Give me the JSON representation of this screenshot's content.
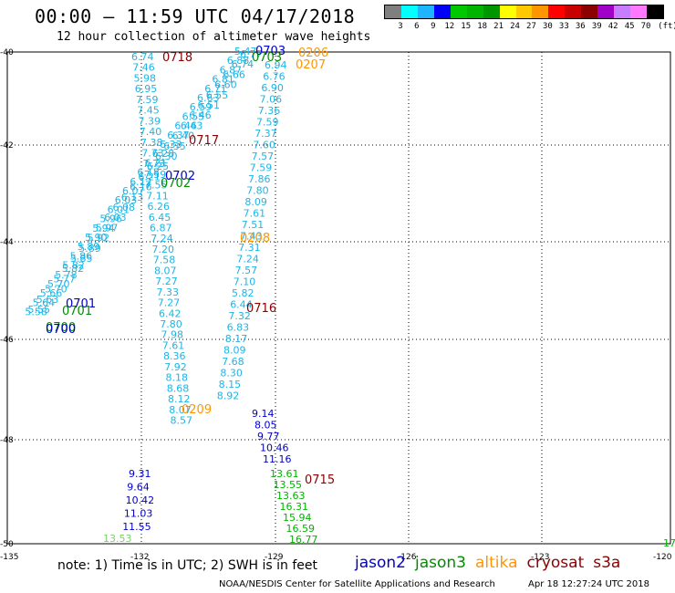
{
  "title": "00:00 – 11:59 UTC 04/17/2018",
  "subtitle": "12 hour collection of altimeter wave heights",
  "scale": {
    "colors": [
      "#7f7f7f",
      "#00ffff",
      "#1eb4ff",
      "#0000ff",
      "#00c800",
      "#00b400",
      "#009600",
      "#ffff00",
      "#ffc800",
      "#ff9600",
      "#ff0000",
      "#c80000",
      "#8c0000",
      "#a000c8",
      "#c87dff",
      "#ff78ff",
      "#000000"
    ],
    "labels": [
      "3",
      "6",
      "9",
      "12",
      "15",
      "18",
      "21",
      "24",
      "27",
      "30",
      "33",
      "36",
      "39",
      "42",
      "45",
      "70",
      "(ft)"
    ]
  },
  "axes": {
    "lat_labels": [
      "-40",
      "-42",
      "-44",
      "-46",
      "-48",
      "-50"
    ],
    "lon_labels": [
      "-135",
      "-132",
      "-129",
      "-126",
      "-123",
      "-120"
    ]
  },
  "tracks": {
    "col_a": [
      "6.74",
      "7.46",
      "5.98",
      "6.95",
      "7.59",
      "7.45",
      "7.39",
      "7.40",
      "7.38",
      "7.73",
      "7.73",
      "7.59",
      "7.55",
      "7.11",
      "6.26",
      "6.45",
      "6.87",
      "7.24",
      "7.20",
      "7.58",
      "8.07",
      "7.27",
      "7.33",
      "7.27",
      "6.42",
      "7.80",
      "7.98",
      "7.61",
      "8.36",
      "7.92",
      "8.18",
      "8.68",
      "8.12",
      "8.07",
      "8.57"
    ],
    "col_a_tail": [
      "9.31",
      "9.64",
      "10.42",
      "11.03",
      "11.55"
    ],
    "col_a_end": "13.53",
    "col_b": [
      "6.94",
      "6.76",
      "6.90",
      "7.06",
      "7.36",
      "7.59",
      "7.37",
      "7.60",
      "7.57",
      "7.59",
      "7.86",
      "7.80",
      "8.09",
      "7.61",
      "7.51",
      "7.43",
      "7.31",
      "7.24",
      "7.57",
      "7.10",
      "5.82",
      "6.44",
      "7.32",
      "6.83",
      "8.17",
      "8.09",
      "7.68",
      "8.30",
      "8.15",
      "8.92"
    ],
    "col_b_mid": [
      "9.14",
      "8.05",
      "9.77",
      "10.46",
      "11.16"
    ],
    "col_b_green": [
      "13.61",
      "13.55",
      "13.63",
      "16.31",
      "15.94",
      "16.59",
      "16.77"
    ],
    "diag_a": [
      "5.47",
      "6.88",
      "6.87",
      "6.81",
      "6.71",
      "6.63",
      "6.59",
      "6.55",
      "6.46",
      "6.37",
      "6.33",
      "6.28",
      "6.21",
      "6.18",
      "6.12",
      "6.07",
      "6.03",
      "6.01",
      "5.96",
      "5.94",
      "5.90",
      "5.89",
      "5.86",
      "5.82",
      "5.78",
      "5.70",
      "5.66",
      "5.64",
      "5.58"
    ],
    "diag_b": [
      "6.77",
      "6.74",
      "6.66",
      "6.60",
      "6.55",
      "6.51",
      "6.46",
      "6.43",
      "6.40",
      "6.35",
      "6.30",
      "6.25",
      "6.21",
      "6.16",
      "6.13",
      "6.08",
      "6.03",
      "5.97",
      "5.92",
      "5.89",
      "5.85",
      "5.82",
      "5.77",
      "5.70",
      "5.63",
      "5.55"
    ]
  },
  "time_tags": [
    {
      "text": "0718",
      "sat": "cryosat"
    },
    {
      "text": "0703",
      "sat": "jason2"
    },
    {
      "text": "0703",
      "sat": "jason3"
    },
    {
      "text": "0206",
      "sat": "altika"
    },
    {
      "text": "0207",
      "sat": "altika"
    },
    {
      "text": "0717",
      "sat": "cryosat"
    },
    {
      "text": "0702",
      "sat": "jason2"
    },
    {
      "text": "0702",
      "sat": "jason3"
    },
    {
      "text": "0208",
      "sat": "altika"
    },
    {
      "text": "0701",
      "sat": "jason2"
    },
    {
      "text": "0701",
      "sat": "jason3"
    },
    {
      "text": "0700",
      "sat": "jason3"
    },
    {
      "text": "0700",
      "sat": "jason2"
    },
    {
      "text": "0716",
      "sat": "cryosat"
    },
    {
      "text": "0209",
      "sat": "altika"
    },
    {
      "text": "0715",
      "sat": "cryosat"
    }
  ],
  "corner_label": "17",
  "sat_colors": {
    "jason2": "#0000cc",
    "jason3": "#008c00",
    "altika": "#ff9600",
    "cryosat": "#8c0000",
    "s3a": "#8c0000",
    "track_light": "#1eb4e6",
    "track_blue": "#0000cc",
    "track_green": "#00b400",
    "track_lightgreen": "#78d264"
  },
  "footer": {
    "note": "note: 1) Time is in UTC; 2) SWH is in feet",
    "legend": [
      {
        "text": "jason2",
        "sat": "jason2"
      },
      {
        "text": "jason3",
        "sat": "jason3"
      },
      {
        "text": "altika",
        "sat": "altika"
      },
      {
        "text": "cryosat",
        "sat": "cryosat"
      },
      {
        "text": "s3a",
        "sat": "s3a"
      }
    ],
    "credit": "NOAA/NESDIS Center for Satellite Applications and Research",
    "stamp": "Apr 18 12:27:24 UTC 2018"
  }
}
